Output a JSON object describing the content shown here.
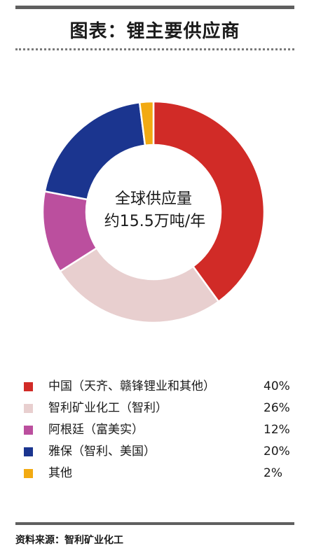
{
  "header": {
    "title": "图表：锂主要供应商"
  },
  "chart_data": {
    "type": "pie",
    "title": "图表：锂主要供应商",
    "center_label_lines": [
      "全球供应量",
      "约15.5万吨/年"
    ],
    "slices": [
      {
        "label": "中国（天齐、赣锋锂业和其他）",
        "value": 40,
        "value_label": "40%",
        "color": "#d12b27"
      },
      {
        "label": "智利矿业化工（智利）",
        "value": 26,
        "value_label": "26%",
        "color": "#e8cfcf"
      },
      {
        "label": "阿根廷（富美实）",
        "value": 12,
        "value_label": "12%",
        "color": "#bb4f9e"
      },
      {
        "label": "雅保（智利、美国）",
        "value": 20,
        "value_label": "20%",
        "color": "#1b358f"
      },
      {
        "label": "其他",
        "value": 2,
        "value_label": "2%",
        "color": "#f2aa12"
      }
    ],
    "legend_position": "bottom"
  },
  "footer": {
    "source": "资料来源：智利矿业化工"
  }
}
